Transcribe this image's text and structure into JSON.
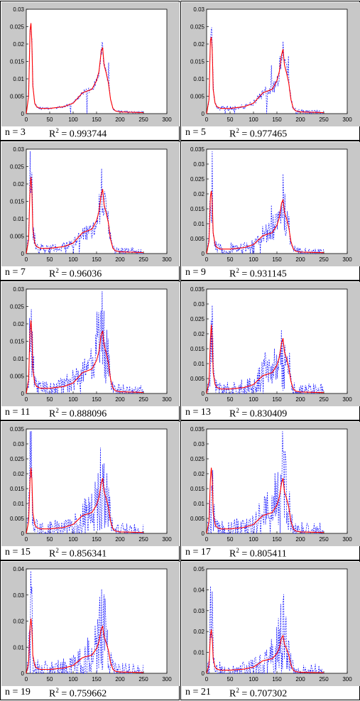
{
  "colors": {
    "frame": "#c8c8c8",
    "plot_bg": "#ffffff",
    "fitted": "#ff0000",
    "measured": "#0000ff"
  },
  "caption": {
    "r_label": "R",
    "r_exp": "2",
    "eq": " = "
  },
  "chart_data": [
    {
      "type": "line",
      "n_label": "n = 3",
      "r2": "0.993744",
      "noise": 0.08,
      "xlim": [
        0,
        300
      ],
      "ylim": [
        0,
        0.03
      ],
      "xticks": [
        "0",
        "50",
        "100",
        "150",
        "200",
        "250",
        "300"
      ],
      "yticks": [
        "0",
        "0.005",
        "0.01",
        "0.015",
        "0.02",
        "0.025",
        "0.03"
      ],
      "x": [
        0,
        5,
        8,
        10,
        12,
        14,
        18,
        22,
        30,
        50,
        80,
        100,
        120,
        130,
        140,
        150,
        155,
        160,
        163,
        166,
        170,
        175,
        180,
        185,
        190,
        200,
        250
      ],
      "fitted": [
        0,
        0.005,
        0.024,
        0.026,
        0.02,
        0.008,
        0.003,
        0.002,
        0.0015,
        0.0015,
        0.002,
        0.003,
        0.006,
        0.0065,
        0.007,
        0.0095,
        0.012,
        0.018,
        0.019,
        0.014,
        0.012,
        0.009,
        0.004,
        0.0015,
        0.0008,
        0.0005,
        0.0003
      ],
      "series": [
        {
          "name": ""
        },
        {
          "name": ""
        }
      ]
    },
    {
      "type": "line",
      "n_label": "n = 5",
      "r2": "0.977465",
      "noise": 0.18,
      "xlim": [
        0,
        300
      ],
      "ylim": [
        0,
        0.03
      ],
      "xticks": [
        "0",
        "50",
        "100",
        "150",
        "200",
        "250",
        "300"
      ],
      "yticks": [
        "0",
        "0.005",
        "0.01",
        "0.015",
        "0.02",
        "0.025",
        "0.03"
      ],
      "x": [
        0,
        5,
        8,
        10,
        12,
        14,
        18,
        22,
        30,
        50,
        80,
        100,
        120,
        130,
        140,
        150,
        155,
        160,
        163,
        166,
        170,
        175,
        180,
        185,
        190,
        200,
        250
      ],
      "fitted": [
        0,
        0.004,
        0.021,
        0.022,
        0.018,
        0.007,
        0.003,
        0.002,
        0.0015,
        0.0015,
        0.002,
        0.003,
        0.006,
        0.0065,
        0.007,
        0.0095,
        0.012,
        0.017,
        0.0185,
        0.014,
        0.012,
        0.009,
        0.004,
        0.0015,
        0.0008,
        0.0005,
        0.0003
      ],
      "series": [
        {
          "name": ""
        },
        {
          "name": ""
        }
      ]
    },
    {
      "type": "line",
      "n_label": "n = 7",
      "r2": "0.96036",
      "noise": 0.3,
      "xlim": [
        0,
        300
      ],
      "ylim": [
        0,
        0.03
      ],
      "xticks": [
        "0",
        "50",
        "100",
        "150",
        "200",
        "250",
        "300"
      ],
      "yticks": [
        "0",
        "0.005",
        "0.01",
        "0.015",
        "0.02",
        "0.025",
        "0.03"
      ],
      "x": [
        0,
        5,
        8,
        10,
        12,
        14,
        18,
        22,
        30,
        50,
        80,
        100,
        120,
        130,
        140,
        150,
        155,
        160,
        163,
        166,
        170,
        175,
        180,
        185,
        190,
        200,
        250
      ],
      "fitted": [
        0,
        0.004,
        0.019,
        0.022,
        0.018,
        0.007,
        0.003,
        0.002,
        0.0015,
        0.0015,
        0.002,
        0.003,
        0.006,
        0.0065,
        0.007,
        0.0095,
        0.012,
        0.017,
        0.0185,
        0.014,
        0.012,
        0.009,
        0.004,
        0.0015,
        0.0008,
        0.0005,
        0.0003
      ],
      "series": [
        {
          "name": ""
        },
        {
          "name": ""
        }
      ]
    },
    {
      "type": "line",
      "n_label": "n = 9",
      "r2": "0.931145",
      "noise": 0.4,
      "xlim": [
        0,
        300
      ],
      "ylim": [
        0,
        0.035
      ],
      "xticks": [
        "0",
        "50",
        "100",
        "150",
        "200",
        "250",
        "300"
      ],
      "yticks": [
        "0",
        "0.005",
        "0.01",
        "0.015",
        "0.02",
        "0.025",
        "0.03",
        "0.035"
      ],
      "x": [
        0,
        5,
        8,
        10,
        12,
        14,
        18,
        22,
        30,
        50,
        80,
        100,
        120,
        130,
        140,
        150,
        155,
        160,
        163,
        166,
        170,
        175,
        180,
        185,
        190,
        200,
        250
      ],
      "fitted": [
        0,
        0.004,
        0.019,
        0.021,
        0.017,
        0.007,
        0.003,
        0.002,
        0.0015,
        0.0015,
        0.002,
        0.003,
        0.006,
        0.0065,
        0.007,
        0.0095,
        0.012,
        0.017,
        0.018,
        0.014,
        0.012,
        0.009,
        0.004,
        0.0015,
        0.0008,
        0.0005,
        0.0003
      ],
      "series": [
        {
          "name": ""
        },
        {
          "name": ""
        }
      ]
    },
    {
      "type": "line",
      "n_label": "n = 11",
      "r2": "0.888096",
      "noise": 0.55,
      "xlim": [
        0,
        300
      ],
      "ylim": [
        0,
        0.03
      ],
      "xticks": [
        "0",
        "50",
        "100",
        "150",
        "200",
        "250",
        "300"
      ],
      "yticks": [
        "0",
        "0.005",
        "0.01",
        "0.015",
        "0.02",
        "0.025",
        "0.03"
      ],
      "x": [
        0,
        5,
        8,
        10,
        12,
        14,
        18,
        22,
        30,
        50,
        80,
        100,
        120,
        130,
        140,
        150,
        155,
        160,
        163,
        166,
        170,
        175,
        180,
        185,
        190,
        200,
        250
      ],
      "fitted": [
        0,
        0.004,
        0.018,
        0.021,
        0.017,
        0.007,
        0.003,
        0.002,
        0.0015,
        0.0015,
        0.002,
        0.003,
        0.006,
        0.0065,
        0.007,
        0.0095,
        0.012,
        0.017,
        0.018,
        0.014,
        0.012,
        0.009,
        0.004,
        0.0015,
        0.0008,
        0.0005,
        0.0003
      ],
      "series": [
        {
          "name": ""
        },
        {
          "name": ""
        }
      ]
    },
    {
      "type": "line",
      "n_label": "n = 13",
      "r2": "0.830409",
      "noise": 0.7,
      "xlim": [
        0,
        300
      ],
      "ylim": [
        0,
        0.035
      ],
      "xticks": [
        "0",
        "50",
        "100",
        "150",
        "200",
        "250",
        "300"
      ],
      "yticks": [
        "0",
        "0.005",
        "0.01",
        "0.015",
        "0.02",
        "0.025",
        "0.03",
        "0.035"
      ],
      "x": [
        0,
        5,
        8,
        10,
        12,
        14,
        18,
        22,
        30,
        50,
        80,
        100,
        120,
        130,
        140,
        150,
        155,
        160,
        163,
        166,
        170,
        175,
        180,
        185,
        190,
        200,
        250
      ],
      "fitted": [
        0,
        0.004,
        0.018,
        0.023,
        0.018,
        0.007,
        0.003,
        0.002,
        0.0015,
        0.0015,
        0.002,
        0.003,
        0.006,
        0.0065,
        0.007,
        0.0095,
        0.012,
        0.017,
        0.0185,
        0.014,
        0.012,
        0.009,
        0.004,
        0.0015,
        0.0008,
        0.0005,
        0.0003
      ],
      "series": [
        {
          "name": ""
        },
        {
          "name": ""
        }
      ]
    },
    {
      "type": "line",
      "n_label": "n = 15",
      "r2": "0.856341",
      "noise": 0.7,
      "xlim": [
        0,
        300
      ],
      "ylim": [
        0,
        0.035
      ],
      "xticks": [
        "0",
        "50",
        "100",
        "150",
        "200",
        "250",
        "300"
      ],
      "yticks": [
        "0",
        "0.005",
        "0.01",
        "0.015",
        "0.02",
        "0.025",
        "0.03",
        "0.035"
      ],
      "x": [
        0,
        5,
        8,
        10,
        12,
        14,
        18,
        22,
        30,
        50,
        80,
        100,
        120,
        130,
        140,
        150,
        155,
        160,
        163,
        166,
        170,
        175,
        180,
        185,
        190,
        200,
        250
      ],
      "fitted": [
        0,
        0.004,
        0.018,
        0.022,
        0.018,
        0.007,
        0.003,
        0.002,
        0.0015,
        0.0015,
        0.002,
        0.003,
        0.006,
        0.0065,
        0.007,
        0.0095,
        0.012,
        0.017,
        0.0185,
        0.014,
        0.012,
        0.009,
        0.004,
        0.0015,
        0.0008,
        0.0005,
        0.0003
      ],
      "series": [
        {
          "name": ""
        },
        {
          "name": ""
        }
      ]
    },
    {
      "type": "line",
      "n_label": "n = 17",
      "r2": "0.805411",
      "noise": 0.8,
      "xlim": [
        0,
        300
      ],
      "ylim": [
        0,
        0.035
      ],
      "xticks": [
        "0",
        "50",
        "100",
        "150",
        "200",
        "250",
        "300"
      ],
      "yticks": [
        "0",
        "0.005",
        "0.01",
        "0.015",
        "0.02",
        "0.025",
        "0.03",
        "0.035"
      ],
      "x": [
        0,
        5,
        8,
        10,
        12,
        14,
        18,
        22,
        30,
        50,
        80,
        100,
        120,
        130,
        140,
        150,
        155,
        160,
        163,
        166,
        170,
        175,
        180,
        185,
        190,
        200,
        250
      ],
      "fitted": [
        0,
        0.004,
        0.018,
        0.022,
        0.018,
        0.007,
        0.003,
        0.002,
        0.0015,
        0.0015,
        0.002,
        0.003,
        0.006,
        0.0065,
        0.007,
        0.0095,
        0.012,
        0.017,
        0.0185,
        0.014,
        0.012,
        0.009,
        0.004,
        0.0015,
        0.0008,
        0.0005,
        0.0003
      ],
      "series": [
        {
          "name": ""
        },
        {
          "name": ""
        }
      ]
    },
    {
      "type": "line",
      "n_label": "n = 19",
      "r2": "0.759662",
      "noise": 0.9,
      "xlim": [
        0,
        300
      ],
      "ylim": [
        0,
        0.04
      ],
      "xticks": [
        "0",
        "50",
        "100",
        "150",
        "200",
        "250",
        "300"
      ],
      "yticks": [
        "0",
        "0.01",
        "0.02",
        "0.03",
        "0.04"
      ],
      "x": [
        0,
        5,
        8,
        10,
        12,
        14,
        18,
        22,
        30,
        50,
        80,
        100,
        120,
        130,
        140,
        150,
        155,
        160,
        163,
        166,
        170,
        175,
        180,
        185,
        190,
        200,
        250
      ],
      "fitted": [
        0,
        0.004,
        0.018,
        0.021,
        0.017,
        0.007,
        0.003,
        0.002,
        0.0015,
        0.0015,
        0.002,
        0.003,
        0.006,
        0.0065,
        0.007,
        0.0095,
        0.012,
        0.017,
        0.018,
        0.014,
        0.012,
        0.009,
        0.004,
        0.0015,
        0.0008,
        0.0005,
        0.0003
      ],
      "series": [
        {
          "name": ""
        },
        {
          "name": ""
        }
      ]
    },
    {
      "type": "line",
      "n_label": "n = 21",
      "r2": "0.707302",
      "noise": 1.0,
      "xlim": [
        0,
        300
      ],
      "ylim": [
        0,
        0.05
      ],
      "xticks": [
        "0",
        "50",
        "100",
        "150",
        "200",
        "250",
        "300"
      ],
      "yticks": [
        "0",
        "0.01",
        "0.02",
        "0.03",
        "0.04",
        "0.05"
      ],
      "x": [
        0,
        5,
        8,
        10,
        12,
        14,
        18,
        22,
        30,
        50,
        80,
        100,
        120,
        130,
        140,
        150,
        155,
        160,
        163,
        166,
        170,
        175,
        180,
        185,
        190,
        200,
        250
      ],
      "fitted": [
        0,
        0.004,
        0.018,
        0.021,
        0.017,
        0.007,
        0.003,
        0.002,
        0.0015,
        0.0015,
        0.002,
        0.003,
        0.006,
        0.0065,
        0.007,
        0.0095,
        0.012,
        0.017,
        0.018,
        0.014,
        0.012,
        0.009,
        0.004,
        0.0015,
        0.0008,
        0.0005,
        0.0003
      ],
      "series": [
        {
          "name": ""
        },
        {
          "name": ""
        }
      ]
    }
  ]
}
